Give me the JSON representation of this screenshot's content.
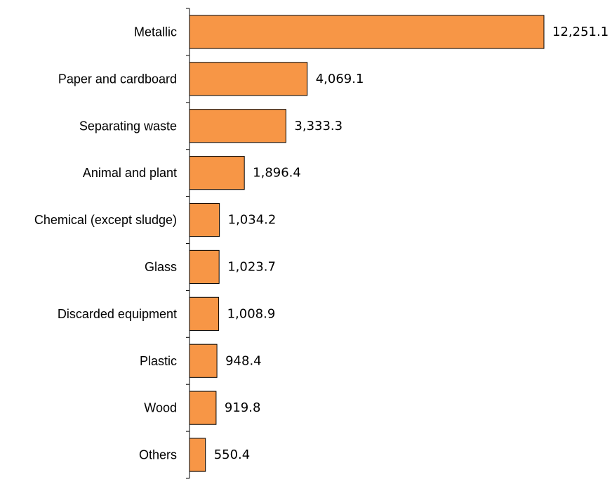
{
  "chart_data": {
    "type": "bar",
    "orientation": "horizontal",
    "categories": [
      "Metallic",
      "Paper and cardboard",
      "Separating waste",
      "Animal and plant",
      "Chemical (except sludge)",
      "Glass",
      "Discarded equipment",
      "Plastic",
      "Wood",
      "Others"
    ],
    "values": [
      12251.1,
      4069.1,
      3333.3,
      1896.4,
      1034.2,
      1023.7,
      1008.9,
      948.4,
      919.8,
      550.4
    ],
    "value_labels": [
      "12,251.1",
      "4,069.1",
      "3,333.3",
      "1,896.4",
      "1,034.2",
      "1,023.7",
      "1,008.9",
      "948.4",
      "919.8",
      "550.4"
    ],
    "title": "",
    "xlabel": "",
    "ylabel": "",
    "xlim": [
      0,
      12251.1
    ],
    "grid": false,
    "legend": "none",
    "colors": {
      "bar_fill": "#F79646",
      "bar_stroke": "#000000",
      "axis": "#000000"
    }
  }
}
